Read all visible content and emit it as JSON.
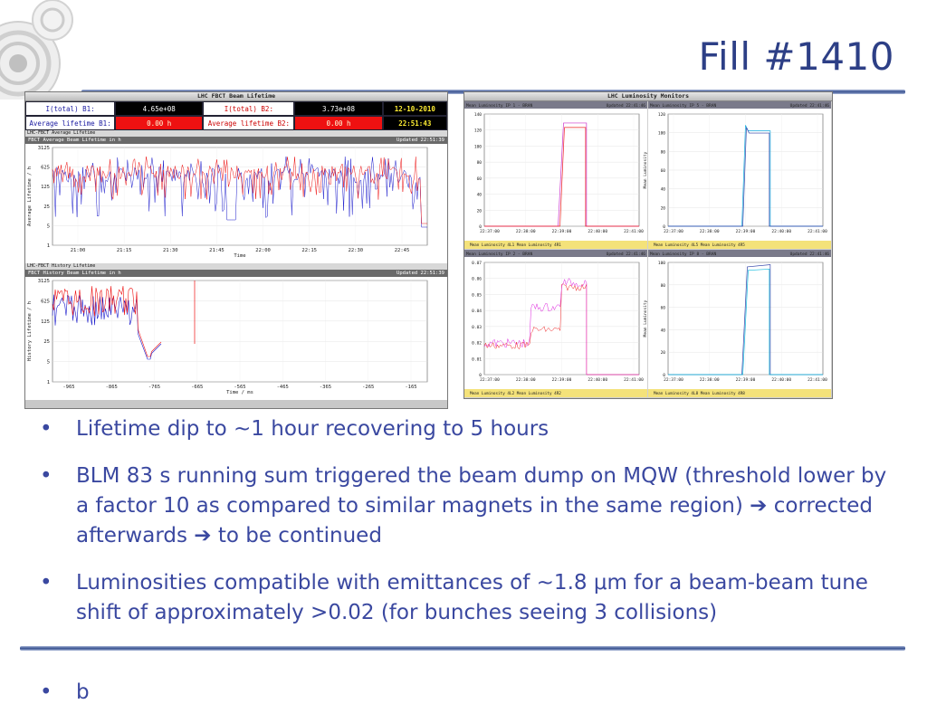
{
  "slide": {
    "title": "Fill #1410",
    "bullets": [
      "Lifetime dip to ~1 hour recovering to 5 hours",
      "BLM 83 s running sum triggered the beam dump on MQW (threshold lower by a factor 10 as compared to similar magnets in the same region) ➔ corrected afterwards ➔ to be continued",
      "Luminosities compatible with emittances of ~1.8 μm for a beam-beam tune shift of approximately >0.02 (for bunches seeing 3 collisions)"
    ],
    "extra_bullet": "b"
  },
  "lifetime_app": {
    "window_title": "LHC FBCT Beam Lifetime",
    "header": {
      "b1_label": "I(total) B1:",
      "b1_value": "4.65e+08",
      "b2_label": "I(total) B2:",
      "b2_value": "3.73e+08",
      "date": "12-10-2010",
      "avg_b1_label": "Average lifetime B1:",
      "avg_b1_value": "0.00 h",
      "avg_b2_label": "Average lifetime B2:",
      "avg_b2_value": "0.00 h",
      "time": "22:51:43"
    },
    "avg_section": "LHC-FBCT Average Lifetime",
    "avg_plot_title": "FBCT Average Beam Lifetime in h",
    "avg_updated": "Updated 22:51:39",
    "hist_section": "LHC-FBCT History Lifetime",
    "hist_plot_title": "FBCT History Beam Lifetime in h",
    "hist_updated": "Updated 22:51:39"
  },
  "lumi_app": {
    "window_title": "LHC Luminosity Monitors",
    "panels": [
      {
        "title": "Mean Luminosity IP 1 - BRAN",
        "updated": "Updated 22:41:46",
        "legend": "Mean Luminosity 4L1   Mean Luminosity 4R1"
      },
      {
        "title": "Mean Luminosity IP 5 - BRAN",
        "updated": "Updated 22:41:46",
        "legend": "Mean Luminosity 4L5   Mean Luminosity 4R5"
      },
      {
        "title": "Mean Luminosity IP 2 - BRAN",
        "updated": "Updated 22:41:46",
        "legend": "Mean Luminosity 4L2   Mean Luminosity 4R2"
      },
      {
        "title": "Mean Luminosity IP 8 - BRAN",
        "updated": "Updated 22:41:46",
        "legend": "Mean Luminosity 4L8   Mean Luminosity 4R8"
      }
    ]
  },
  "chart_data": [
    {
      "type": "line",
      "title": "FBCT Average Beam Lifetime in h",
      "xlabel": "Time",
      "ylabel": "Average Lifetime / h",
      "x": [
        "21:00",
        "21:15",
        "21:30",
        "21:45",
        "22:00",
        "22:15",
        "22:30",
        "22:45"
      ],
      "y_ticks": [
        "3125",
        "625",
        "125",
        "25",
        "5",
        "1"
      ],
      "series": [
        {
          "name": "B1",
          "color": "#1a1acc"
        },
        {
          "name": "B2",
          "color": "#ee1111"
        }
      ]
    },
    {
      "type": "line",
      "title": "FBCT History Beam Lifetime in h",
      "xlabel": "Time / ms",
      "ylabel": "History Lifetime / h",
      "x": [
        "-965",
        "-865",
        "-765",
        "-665",
        "-565",
        "-465",
        "-365",
        "-265",
        "-165"
      ],
      "y_ticks": [
        "3125",
        "625",
        "125",
        "25",
        "5",
        "1"
      ],
      "series": [
        {
          "name": "B1",
          "color": "#1a1acc"
        },
        {
          "name": "B2",
          "color": "#ee1111"
        }
      ]
    },
    {
      "type": "line",
      "title": "Mean Luminosity IP 1 - BRAN",
      "ylabel": "Mean Luminosity",
      "x": [
        "22:37:00",
        "22:38:00",
        "22:39:00",
        "22:40:00",
        "22:41:00"
      ],
      "y_ticks": [
        "140",
        "120",
        "100",
        "80",
        "60",
        "40",
        "20",
        "0"
      ],
      "series": [
        {
          "name": "Mean Luminosity 4L1",
          "color": "#ee2222"
        },
        {
          "name": "Mean Luminosity 4R1",
          "color": "#cc33cc"
        }
      ]
    },
    {
      "type": "line",
      "title": "Mean Luminosity IP 5 - BRAN",
      "ylabel": "Mean Luminosity",
      "x": [
        "22:37:00",
        "22:38:00",
        "22:39:00",
        "22:40:00",
        "22:41:00"
      ],
      "y_ticks": [
        "120",
        "100",
        "80",
        "60",
        "40",
        "20",
        "0"
      ],
      "series": [
        {
          "name": "Mean Luminosity 4L5",
          "color": "#11aadd"
        },
        {
          "name": "Mean Luminosity 4R5",
          "color": "#3344aa"
        }
      ]
    },
    {
      "type": "line",
      "title": "Mean Luminosity IP 2 - BRAN",
      "ylabel": "Mean Luminosity",
      "x": [
        "22:37:00",
        "22:38:00",
        "22:39:00",
        "22:40:00",
        "22:41:00"
      ],
      "y_ticks": [
        "0.07",
        "0.06",
        "0.05",
        "0.04",
        "0.03",
        "0.02",
        "0.01",
        "0"
      ],
      "series": [
        {
          "name": "Mean Luminosity 4L2",
          "color": "#ee2222"
        },
        {
          "name": "Mean Luminosity 4R2",
          "color": "#dd22dd"
        }
      ]
    },
    {
      "type": "line",
      "title": "Mean Luminosity IP 8 - BRAN",
      "ylabel": "Mean Luminosity",
      "x": [
        "22:37:00",
        "22:38:00",
        "22:39:00",
        "22:40:00",
        "22:41:00"
      ],
      "y_ticks": [
        "100",
        "80",
        "60",
        "40",
        "20",
        "0"
      ],
      "series": [
        {
          "name": "Mean Luminosity 4L8",
          "color": "#3344aa"
        },
        {
          "name": "Mean Luminosity 4R8",
          "color": "#11bbdd"
        }
      ]
    }
  ]
}
